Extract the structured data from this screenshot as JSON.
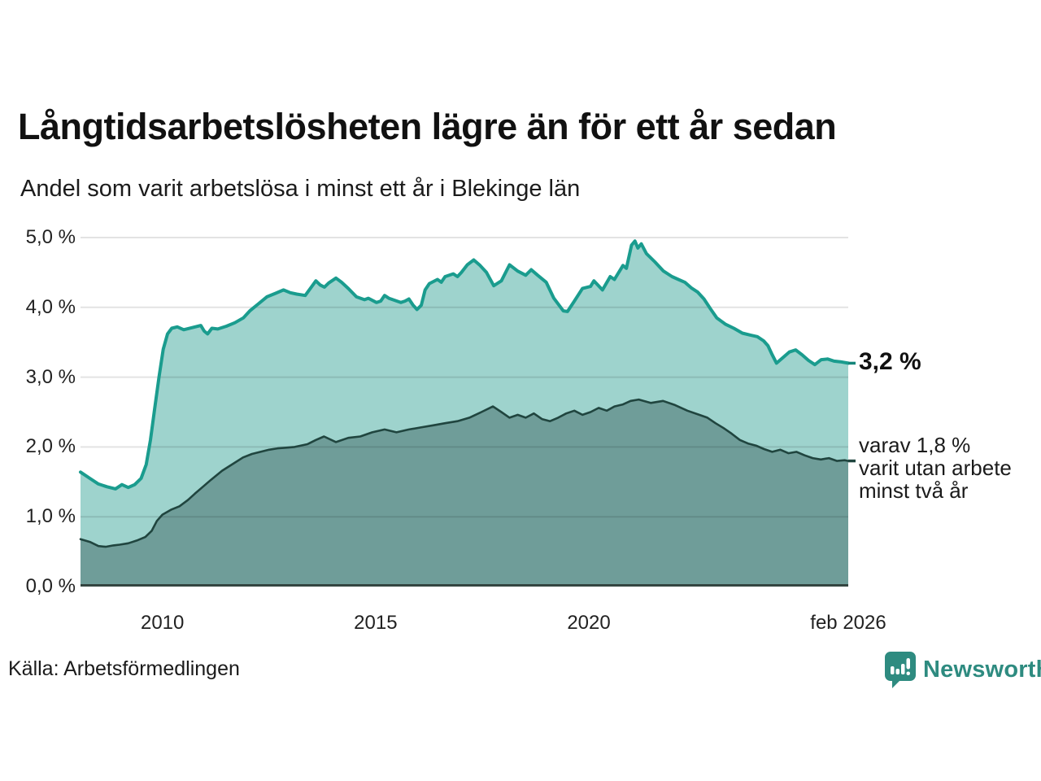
{
  "header": {
    "title": "Långtidsarbetslösheten lägre än för ett år sedan",
    "subtitle": "Andel som varit arbetslösa i minst ett år i Blekinge län"
  },
  "annotations": {
    "latest_value": "3,2 %",
    "sub_series_note": "varav 1,8 %\nvarit utan arbete\nminst två år"
  },
  "footer": {
    "source": "Källa: Arbetsförmedlingen",
    "brand": "Newsworthy",
    "brand_icon": "newsworthy-bubble-chart-icon"
  },
  "colors": {
    "line_one_year": "#1a9c8e",
    "fill_one_year": "#9ed3cd",
    "line_two_year": "#20453f",
    "fill_two_year": "#6f9d99",
    "baseline": "#344541",
    "gridline": "rgba(0,0,0,0.11)",
    "brand_teal": "#2e8b80",
    "tick_one_year": "#15857a",
    "tick_two_year": "#20453f"
  },
  "chart_data": {
    "type": "area",
    "title": "Långtidsarbetslösheten lägre än för ett år sedan",
    "subtitle": "Andel som varit arbetslösa i minst ett år i Blekinge län",
    "xlabel": "",
    "ylabel": "",
    "x_range_years": [
      2008.08,
      2026.083
    ],
    "ylim": [
      0,
      5
    ],
    "grid": true,
    "legend_position": "right-annotations",
    "y_axis": {
      "ticks": [
        0,
        1,
        2,
        3,
        4,
        5
      ],
      "tick_labels": [
        "0,0 %",
        "1,0 %",
        "2,0 %",
        "3,0 %",
        "4,0 %",
        "5,0 %"
      ]
    },
    "x_axis": {
      "ticks": [
        2010,
        2015,
        2020,
        2026.083
      ],
      "tick_labels": [
        "2010",
        "2015",
        "2020",
        "feb 2026"
      ]
    },
    "series": [
      {
        "name": "Andel arbetslösa minst ett år",
        "end_label": "3,2 %",
        "end_value": 3.2,
        "points": [
          [
            2008.08,
            1.64
          ],
          [
            2008.3,
            1.55
          ],
          [
            2008.5,
            1.47
          ],
          [
            2008.7,
            1.43
          ],
          [
            2008.9,
            1.4
          ],
          [
            2009.05,
            1.46
          ],
          [
            2009.2,
            1.42
          ],
          [
            2009.35,
            1.46
          ],
          [
            2009.5,
            1.55
          ],
          [
            2009.62,
            1.75
          ],
          [
            2009.72,
            2.1
          ],
          [
            2009.82,
            2.55
          ],
          [
            2009.92,
            3.0
          ],
          [
            2010.02,
            3.4
          ],
          [
            2010.12,
            3.62
          ],
          [
            2010.22,
            3.7
          ],
          [
            2010.35,
            3.72
          ],
          [
            2010.5,
            3.68
          ],
          [
            2010.7,
            3.71
          ],
          [
            2010.9,
            3.74
          ],
          [
            2010.98,
            3.66
          ],
          [
            2011.06,
            3.62
          ],
          [
            2011.16,
            3.7
          ],
          [
            2011.3,
            3.69
          ],
          [
            2011.5,
            3.73
          ],
          [
            2011.7,
            3.78
          ],
          [
            2011.9,
            3.85
          ],
          [
            2012.05,
            3.95
          ],
          [
            2012.25,
            4.05
          ],
          [
            2012.45,
            4.15
          ],
          [
            2012.65,
            4.2
          ],
          [
            2012.84,
            4.25
          ],
          [
            2013.0,
            4.21
          ],
          [
            2013.15,
            4.19
          ],
          [
            2013.35,
            4.17
          ],
          [
            2013.6,
            4.38
          ],
          [
            2013.7,
            4.32
          ],
          [
            2013.8,
            4.29
          ],
          [
            2013.9,
            4.35
          ],
          [
            2014.07,
            4.42
          ],
          [
            2014.2,
            4.36
          ],
          [
            2014.36,
            4.27
          ],
          [
            2014.55,
            4.15
          ],
          [
            2014.74,
            4.11
          ],
          [
            2014.83,
            4.13
          ],
          [
            2015.02,
            4.07
          ],
          [
            2015.12,
            4.09
          ],
          [
            2015.21,
            4.17
          ],
          [
            2015.31,
            4.13
          ],
          [
            2015.5,
            4.09
          ],
          [
            2015.59,
            4.07
          ],
          [
            2015.69,
            4.09
          ],
          [
            2015.78,
            4.12
          ],
          [
            2015.88,
            4.03
          ],
          [
            2015.97,
            3.97
          ],
          [
            2016.07,
            4.03
          ],
          [
            2016.16,
            4.25
          ],
          [
            2016.26,
            4.34
          ],
          [
            2016.45,
            4.4
          ],
          [
            2016.54,
            4.36
          ],
          [
            2016.63,
            4.44
          ],
          [
            2016.82,
            4.48
          ],
          [
            2016.92,
            4.44
          ],
          [
            2017.01,
            4.5
          ],
          [
            2017.15,
            4.61
          ],
          [
            2017.3,
            4.68
          ],
          [
            2017.45,
            4.6
          ],
          [
            2017.6,
            4.5
          ],
          [
            2017.77,
            4.31
          ],
          [
            2017.95,
            4.38
          ],
          [
            2018.14,
            4.61
          ],
          [
            2018.33,
            4.52
          ],
          [
            2018.52,
            4.46
          ],
          [
            2018.65,
            4.54
          ],
          [
            2018.8,
            4.46
          ],
          [
            2019.0,
            4.36
          ],
          [
            2019.18,
            4.13
          ],
          [
            2019.4,
            3.95
          ],
          [
            2019.5,
            3.94
          ],
          [
            2019.66,
            4.09
          ],
          [
            2019.85,
            4.27
          ],
          [
            2020.04,
            4.3
          ],
          [
            2020.12,
            4.38
          ],
          [
            2020.32,
            4.25
          ],
          [
            2020.5,
            4.44
          ],
          [
            2020.6,
            4.4
          ],
          [
            2020.8,
            4.6
          ],
          [
            2020.88,
            4.56
          ],
          [
            2021.0,
            4.89
          ],
          [
            2021.08,
            4.95
          ],
          [
            2021.15,
            4.85
          ],
          [
            2021.23,
            4.91
          ],
          [
            2021.35,
            4.77
          ],
          [
            2021.55,
            4.65
          ],
          [
            2021.75,
            4.52
          ],
          [
            2021.95,
            4.44
          ],
          [
            2022.1,
            4.4
          ],
          [
            2022.25,
            4.36
          ],
          [
            2022.4,
            4.28
          ],
          [
            2022.55,
            4.22
          ],
          [
            2022.7,
            4.12
          ],
          [
            2022.85,
            3.98
          ],
          [
            2023.0,
            3.85
          ],
          [
            2023.2,
            3.76
          ],
          [
            2023.4,
            3.7
          ],
          [
            2023.6,
            3.63
          ],
          [
            2023.8,
            3.6
          ],
          [
            2023.95,
            3.58
          ],
          [
            2024.1,
            3.52
          ],
          [
            2024.2,
            3.45
          ],
          [
            2024.3,
            3.32
          ],
          [
            2024.4,
            3.2
          ],
          [
            2024.55,
            3.28
          ],
          [
            2024.7,
            3.36
          ],
          [
            2024.85,
            3.39
          ],
          [
            2025.0,
            3.32
          ],
          [
            2025.15,
            3.24
          ],
          [
            2025.3,
            3.18
          ],
          [
            2025.45,
            3.25
          ],
          [
            2025.6,
            3.26
          ],
          [
            2025.75,
            3.23
          ],
          [
            2025.9,
            3.22
          ],
          [
            2026.083,
            3.2
          ]
        ]
      },
      {
        "name": "Andel arbetslösa minst två år",
        "end_label": "varav 1,8 % varit utan arbete minst två år",
        "end_value": 1.8,
        "points": [
          [
            2008.08,
            0.68
          ],
          [
            2008.3,
            0.64
          ],
          [
            2008.5,
            0.58
          ],
          [
            2008.67,
            0.57
          ],
          [
            2008.85,
            0.59
          ],
          [
            2009.0,
            0.6
          ],
          [
            2009.2,
            0.62
          ],
          [
            2009.4,
            0.66
          ],
          [
            2009.6,
            0.71
          ],
          [
            2009.75,
            0.8
          ],
          [
            2009.87,
            0.94
          ],
          [
            2010.0,
            1.03
          ],
          [
            2010.2,
            1.1
          ],
          [
            2010.4,
            1.15
          ],
          [
            2010.6,
            1.24
          ],
          [
            2010.76,
            1.33
          ],
          [
            2010.95,
            1.43
          ],
          [
            2011.14,
            1.53
          ],
          [
            2011.4,
            1.66
          ],
          [
            2011.66,
            1.76
          ],
          [
            2011.89,
            1.85
          ],
          [
            2012.1,
            1.9
          ],
          [
            2012.3,
            1.93
          ],
          [
            2012.5,
            1.96
          ],
          [
            2012.7,
            1.98
          ],
          [
            2012.9,
            1.99
          ],
          [
            2013.1,
            2.0
          ],
          [
            2013.4,
            2.04
          ],
          [
            2013.6,
            2.1
          ],
          [
            2013.79,
            2.15
          ],
          [
            2014.07,
            2.07
          ],
          [
            2014.36,
            2.13
          ],
          [
            2014.64,
            2.15
          ],
          [
            2014.92,
            2.21
          ],
          [
            2015.21,
            2.25
          ],
          [
            2015.49,
            2.21
          ],
          [
            2015.78,
            2.25
          ],
          [
            2016.06,
            2.28
          ],
          [
            2016.35,
            2.31
          ],
          [
            2016.63,
            2.34
          ],
          [
            2016.92,
            2.37
          ],
          [
            2017.2,
            2.42
          ],
          [
            2017.48,
            2.5
          ],
          [
            2017.75,
            2.58
          ],
          [
            2017.95,
            2.5
          ],
          [
            2018.14,
            2.42
          ],
          [
            2018.33,
            2.46
          ],
          [
            2018.52,
            2.42
          ],
          [
            2018.71,
            2.48
          ],
          [
            2018.9,
            2.4
          ],
          [
            2019.09,
            2.37
          ],
          [
            2019.28,
            2.42
          ],
          [
            2019.47,
            2.48
          ],
          [
            2019.66,
            2.52
          ],
          [
            2019.85,
            2.46
          ],
          [
            2020.04,
            2.5
          ],
          [
            2020.23,
            2.56
          ],
          [
            2020.42,
            2.52
          ],
          [
            2020.6,
            2.58
          ],
          [
            2020.8,
            2.61
          ],
          [
            2020.98,
            2.66
          ],
          [
            2021.17,
            2.68
          ],
          [
            2021.45,
            2.63
          ],
          [
            2021.74,
            2.66
          ],
          [
            2022.02,
            2.6
          ],
          [
            2022.31,
            2.52
          ],
          [
            2022.59,
            2.46
          ],
          [
            2022.78,
            2.42
          ],
          [
            2022.97,
            2.34
          ],
          [
            2023.16,
            2.27
          ],
          [
            2023.35,
            2.19
          ],
          [
            2023.54,
            2.1
          ],
          [
            2023.73,
            2.05
          ],
          [
            2023.92,
            2.02
          ],
          [
            2024.11,
            1.97
          ],
          [
            2024.3,
            1.93
          ],
          [
            2024.49,
            1.96
          ],
          [
            2024.68,
            1.91
          ],
          [
            2024.87,
            1.93
          ],
          [
            2025.06,
            1.88
          ],
          [
            2025.25,
            1.84
          ],
          [
            2025.44,
            1.82
          ],
          [
            2025.63,
            1.84
          ],
          [
            2025.82,
            1.8
          ],
          [
            2026.0,
            1.81
          ],
          [
            2026.083,
            1.8
          ]
        ]
      }
    ]
  }
}
